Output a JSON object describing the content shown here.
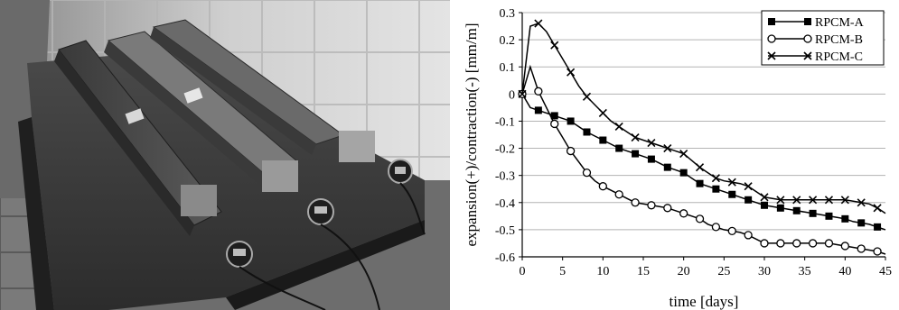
{
  "photo": {
    "description_icon": "photo-of-shrinkage-test-molds"
  },
  "chart_data": {
    "type": "line",
    "xlabel": "time [days]",
    "ylabel": "expansion(+)/contraction(-)  [mm/m]",
    "xlim": [
      0,
      45
    ],
    "ylim": [
      -0.6,
      0.3
    ],
    "xticks": [
      0,
      5,
      10,
      15,
      20,
      25,
      30,
      35,
      40,
      45
    ],
    "yticks": [
      0.3,
      0.2,
      0.1,
      0,
      -0.1,
      -0.2,
      -0.3,
      -0.4,
      -0.5,
      -0.6
    ],
    "xtick_labels": [
      "0",
      "5",
      "10",
      "15",
      "20",
      "25",
      "30",
      "35",
      "40",
      "45"
    ],
    "ytick_labels": [
      "0.3",
      "0.2",
      "0.1",
      "0",
      "-0.1",
      "-0.2",
      "-0.3",
      "-0.4",
      "-0.5",
      "-0.6"
    ],
    "grid": "horizontal",
    "legend_position": "top-right",
    "series": [
      {
        "name": "RPCM-A",
        "marker": "filled-square",
        "x": [
          0,
          1,
          2,
          3,
          4,
          5,
          6,
          7,
          8,
          9,
          10,
          11,
          12,
          13,
          14,
          15,
          16,
          17,
          18,
          19,
          20,
          21,
          22,
          23,
          24,
          25,
          26,
          27,
          28,
          29,
          30,
          31,
          32,
          33,
          34,
          35,
          36,
          37,
          38,
          39,
          40,
          41,
          42,
          43,
          44,
          45
        ],
        "y": [
          0,
          -0.05,
          -0.06,
          -0.07,
          -0.08,
          -0.09,
          -0.1,
          -0.12,
          -0.14,
          -0.155,
          -0.17,
          -0.185,
          -0.2,
          -0.21,
          -0.22,
          -0.23,
          -0.24,
          -0.255,
          -0.27,
          -0.28,
          -0.29,
          -0.31,
          -0.33,
          -0.34,
          -0.35,
          -0.36,
          -0.37,
          -0.38,
          -0.39,
          -0.4,
          -0.41,
          -0.415,
          -0.42,
          -0.425,
          -0.43,
          -0.435,
          -0.44,
          -0.445,
          -0.45,
          -0.455,
          -0.46,
          -0.47,
          -0.475,
          -0.48,
          -0.49,
          -0.5
        ],
        "marker_every": 2
      },
      {
        "name": "RPCM-B",
        "marker": "open-circle",
        "x": [
          0,
          1,
          2,
          3,
          4,
          5,
          6,
          7,
          8,
          9,
          10,
          11,
          12,
          13,
          14,
          15,
          16,
          17,
          18,
          19,
          20,
          21,
          22,
          23,
          24,
          25,
          26,
          27,
          28,
          29,
          30,
          31,
          32,
          33,
          34,
          35,
          36,
          37,
          38,
          39,
          40,
          41,
          42,
          43,
          44,
          45
        ],
        "y": [
          0,
          0.1,
          0.01,
          -0.05,
          -0.11,
          -0.16,
          -0.21,
          -0.25,
          -0.29,
          -0.32,
          -0.34,
          -0.355,
          -0.37,
          -0.385,
          -0.4,
          -0.405,
          -0.41,
          -0.415,
          -0.42,
          -0.43,
          -0.44,
          -0.45,
          -0.46,
          -0.48,
          -0.49,
          -0.5,
          -0.505,
          -0.51,
          -0.52,
          -0.535,
          -0.55,
          -0.55,
          -0.55,
          -0.55,
          -0.55,
          -0.55,
          -0.55,
          -0.55,
          -0.55,
          -0.555,
          -0.56,
          -0.565,
          -0.57,
          -0.575,
          -0.58,
          -0.59
        ],
        "marker_every": 2
      },
      {
        "name": "RPCM-C",
        "marker": "x-cross",
        "x": [
          0,
          1,
          2,
          3,
          4,
          5,
          6,
          7,
          8,
          9,
          10,
          11,
          12,
          13,
          14,
          15,
          16,
          17,
          18,
          19,
          20,
          21,
          22,
          23,
          24,
          25,
          26,
          27,
          28,
          29,
          30,
          31,
          32,
          33,
          34,
          35,
          36,
          37,
          38,
          39,
          40,
          41,
          42,
          43,
          44,
          45
        ],
        "y": [
          0,
          0.25,
          0.26,
          0.23,
          0.18,
          0.13,
          0.08,
          0.03,
          -0.01,
          -0.04,
          -0.07,
          -0.1,
          -0.12,
          -0.14,
          -0.16,
          -0.17,
          -0.18,
          -0.19,
          -0.2,
          -0.21,
          -0.22,
          -0.245,
          -0.27,
          -0.29,
          -0.31,
          -0.32,
          -0.325,
          -0.33,
          -0.34,
          -0.36,
          -0.38,
          -0.385,
          -0.39,
          -0.39,
          -0.39,
          -0.39,
          -0.39,
          -0.39,
          -0.39,
          -0.39,
          -0.39,
          -0.395,
          -0.4,
          -0.405,
          -0.42,
          -0.44
        ],
        "marker_every": 2
      }
    ]
  }
}
